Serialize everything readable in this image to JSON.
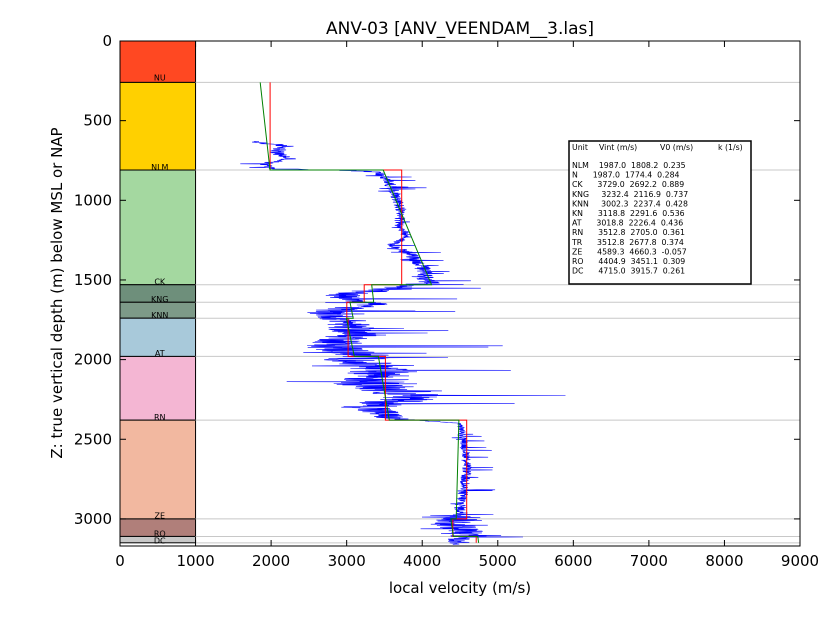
{
  "chart_data": {
    "type": "line",
    "title": "ANV-03 [ANV_VEENDAM__3.las]",
    "xlabel": "local velocity (m/s)",
    "ylabel": "Z: true vertical depth (m) below MSL or NAP",
    "xlim": [
      0,
      9000
    ],
    "ylim": [
      3170,
      0
    ],
    "y_inverted": true,
    "x_ticks": [
      "0",
      "1000",
      "2000",
      "3000",
      "4000",
      "5000",
      "6000",
      "7000",
      "8000",
      "9000"
    ],
    "y_ticks": [
      "0",
      "500",
      "1000",
      "1500",
      "2000",
      "2500",
      "3000"
    ],
    "formation_column_x": [
      0,
      1000
    ],
    "formations": [
      {
        "name": "NU",
        "top": 0,
        "base": 260,
        "color": "#ff4822"
      },
      {
        "name": "NLM",
        "top": 260,
        "base": 810,
        "color": "#ffd000"
      },
      {
        "name": "CK",
        "top": 810,
        "base": 1530,
        "color": "#a4d8a0"
      },
      {
        "name": "KNG",
        "top": 1530,
        "base": 1640,
        "color": "#6e8f7b"
      },
      {
        "name": "KNN",
        "top": 1640,
        "base": 1740,
        "color": "#7d9a88"
      },
      {
        "name": "AT",
        "top": 1740,
        "base": 1980,
        "color": "#a8c9da"
      },
      {
        "name": "RN",
        "top": 1980,
        "base": 2380,
        "color": "#f4b6d3"
      },
      {
        "name": "ZE",
        "top": 2380,
        "base": 3000,
        "color": "#f2b8a0"
      },
      {
        "name": "RO",
        "top": 3000,
        "base": 3110,
        "color": "#b07f7a"
      },
      {
        "name": "DC",
        "top": 3110,
        "base": 3150,
        "color": "#c8c8c8"
      }
    ],
    "label_depths": {
      "NU": 230,
      "NLM": 790,
      "CK": 1510,
      "KNG": 1620,
      "KNN": 1720,
      "AT": 1960,
      "RN": 2360,
      "ZE": 2980,
      "RO": 3090,
      "DC": 3135
    },
    "boundaries": [
      260,
      810,
      1530,
      1640,
      1740,
      1980,
      2380,
      3000,
      3110,
      3150
    ],
    "series": [
      {
        "color": "#0000ff",
        "trend": [
          [
            1730,
            630
          ],
          [
            2200,
            660
          ],
          [
            2050,
            700
          ],
          [
            2250,
            740
          ],
          [
            1900,
            770
          ],
          [
            2000,
            800
          ],
          [
            3400,
            820
          ],
          [
            3550,
            880
          ],
          [
            3650,
            960
          ],
          [
            3700,
            1050
          ],
          [
            3700,
            1150
          ],
          [
            3800,
            1230
          ],
          [
            3600,
            1280
          ],
          [
            3850,
            1340
          ],
          [
            4000,
            1420
          ],
          [
            4050,
            1490
          ],
          [
            4100,
            1520
          ],
          [
            3400,
            1560
          ],
          [
            2900,
            1600
          ],
          [
            3400,
            1650
          ],
          [
            2700,
            1700
          ],
          [
            3000,
            1760
          ],
          [
            3100,
            1840
          ],
          [
            2800,
            1920
          ],
          [
            3200,
            1970
          ],
          [
            3100,
            2010
          ],
          [
            3500,
            2080
          ],
          [
            3300,
            2150
          ],
          [
            3900,
            2230
          ],
          [
            3300,
            2300
          ],
          [
            3600,
            2370
          ],
          [
            4500,
            2400
          ],
          [
            4550,
            2500
          ],
          [
            4600,
            2650
          ],
          [
            4550,
            2800
          ],
          [
            4500,
            2940
          ],
          [
            4550,
            2990
          ],
          [
            4400,
            3030
          ],
          [
            4600,
            3080
          ],
          [
            4500,
            3130
          ]
        ],
        "spread": [
          [
            630,
            450
          ],
          [
            820,
            300
          ],
          [
            1260,
            250
          ],
          [
            1530,
            500
          ],
          [
            1560,
            1100
          ],
          [
            1640,
            900
          ],
          [
            1740,
            1000
          ],
          [
            1980,
            1500
          ],
          [
            2120,
            1800
          ],
          [
            2300,
            1400
          ],
          [
            2380,
            600
          ],
          [
            2390,
            160
          ],
          [
            2960,
            300
          ],
          [
            3000,
            1200
          ],
          [
            3160,
            500
          ]
        ]
      },
      {
        "color": "#ff0000",
        "values": [
          [
            1987,
            260
          ],
          [
            1987,
            810
          ],
          [
            3729,
            810
          ],
          [
            3729,
            1530
          ],
          [
            3232.4,
            1530
          ],
          [
            3232.4,
            1640
          ],
          [
            3002.3,
            1640
          ],
          [
            3002.3,
            1740
          ],
          [
            3018.8,
            1740
          ],
          [
            3018.8,
            1980
          ],
          [
            3512.8,
            1980
          ],
          [
            3512.8,
            2380
          ],
          [
            4589.3,
            2380
          ],
          [
            4589.3,
            3000
          ],
          [
            4404.9,
            3000
          ],
          [
            4404.9,
            3110
          ],
          [
            4715,
            3110
          ],
          [
            4715,
            3150
          ]
        ]
      },
      {
        "color": "#008000",
        "values": [
          [
            1856,
            260
          ],
          [
            1985,
            810
          ],
          [
            3483,
            810
          ],
          [
            4123,
            1530
          ],
          [
            3331,
            1530
          ],
          [
            3358,
            1640
          ],
          [
            3044,
            1640
          ],
          [
            3086,
            1740
          ],
          [
            2996,
            1740
          ],
          [
            3101,
            1980
          ],
          [
            3420,
            1980
          ],
          [
            3564,
            2380
          ],
          [
            4485,
            2380
          ],
          [
            4450,
            3000
          ],
          [
            4378,
            3000
          ],
          [
            4412,
            3110
          ],
          [
            4735,
            3110
          ],
          [
            4746,
            3150
          ]
        ]
      }
    ],
    "table": {
      "header": {
        "unit": "Unit",
        "vint": "Vint (m/s)",
        "v0": "V0 (m/s)",
        "k": "k (1/s)"
      },
      "rows": [
        "NLM    1987.0  1808.2  0.235",
        "N      1987.0  1774.4  0.284",
        "CK      3729.0  2692.2  0.889",
        "KNG     3232.4  2116.9  0.737",
        "KNN     3002.3  2237.4  0.428",
        "KN      3118.8  2291.6  0.536",
        "AT      3018.8  2226.4  0.436",
        "RN      3512.8  2705.0  0.361",
        "TR      3512.8  2677.8  0.374",
        "ZE      4589.3  4660.3  -0.057",
        "RO      4404.9  3451.1  0.309",
        "DC      4715.0  3915.7  0.261"
      ]
    }
  }
}
